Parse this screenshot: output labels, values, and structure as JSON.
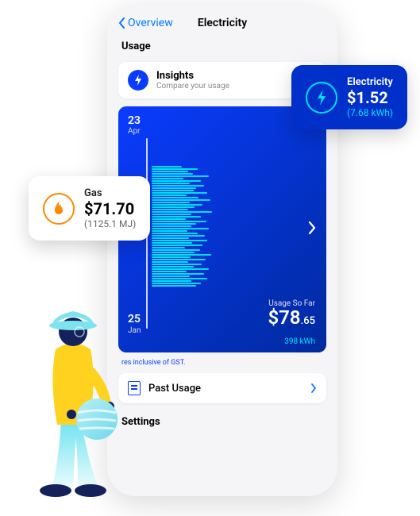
{
  "nav": {
    "back_label": "Overview",
    "title": "Electricity"
  },
  "sections": {
    "usage_label": "Usage",
    "settings_label": "Settings"
  },
  "insights": {
    "title": "Insights",
    "subtitle": "Compare your usage"
  },
  "chart": {
    "type": "horizontal-bar-timeline",
    "date_start_day": "23",
    "date_start_month": "Apr",
    "date_end_day": "25",
    "date_end_month": "Jan",
    "usage_label": "Usage So Far",
    "usage_amount_dollars": "$78",
    "usage_amount_cents": ".65",
    "usage_kwh": "398 kWh",
    "background_gradient": [
      "#0a3cff",
      "#002a9e"
    ],
    "bar_color": "#00e0ff",
    "bar_values": [
      48,
      72,
      58,
      65,
      90,
      50,
      78,
      60,
      82,
      70,
      66,
      88,
      55,
      74,
      92,
      60,
      80,
      68,
      58,
      95,
      63,
      77,
      54,
      86,
      70,
      62,
      90,
      56,
      73,
      84,
      59,
      88,
      64,
      80,
      52,
      76,
      68,
      94,
      61,
      85,
      57,
      79,
      66,
      90,
      55,
      83,
      60,
      87,
      63,
      78,
      70
    ],
    "axis_color": "#ffffff"
  },
  "gst_note": "res inclusive of GST.",
  "past_usage": {
    "label": "Past Usage"
  },
  "float_electric": {
    "title": "Electricity",
    "amount": "$1.52",
    "unit": "(7.68 kWh)",
    "bg_color": "#0030c9",
    "ring_color": "#00e0ff",
    "icon_color": "#00e0ff"
  },
  "float_gas": {
    "title": "Gas",
    "amount": "$71.70",
    "unit": "(1125.1 MJ)",
    "ring_color": "#ff8a00",
    "icon_color": "#ff8a00"
  },
  "illustration": {
    "hat_color": "#7de3ef",
    "face_color": "#14215b",
    "shirt_color": "#ffd21f",
    "pants_gradient": [
      "#6fe3f0",
      "#e6fbfd"
    ],
    "shoes_color": "#14215b",
    "globe_color": "#8de6f2",
    "globe_stripe": "#ffffff"
  }
}
